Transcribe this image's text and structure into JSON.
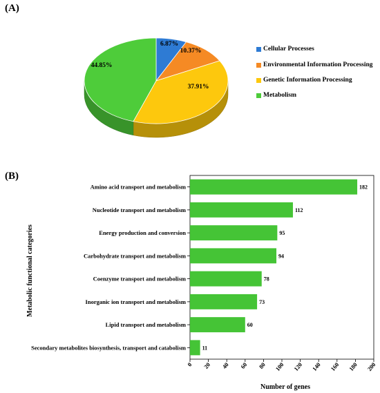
{
  "panel_a": {
    "label": "(A)"
  },
  "panel_b": {
    "label": "(B)"
  },
  "chart_data": [
    {
      "type": "pie",
      "categories": [
        "Cellular Processes",
        "Environmental Information Processing",
        "Genetic Information Processing",
        "Metabolism"
      ],
      "values": [
        6.87,
        10.37,
        37.91,
        44.85
      ],
      "data_labels": [
        "6.87%",
        "10.37%",
        "37.91%",
        "44.85%"
      ],
      "colors": [
        "#2e7bd4",
        "#f58a24",
        "#fdc80d",
        "#4ecc3a"
      ],
      "legend_position": "right",
      "style": "3d"
    },
    {
      "type": "bar",
      "orientation": "horizontal",
      "categories": [
        "Amino acid transport and metabolism",
        "Nucleotide transport and metabolism",
        "Energy production and conversion",
        "Carbohydrate transport and metabolism",
        "Coenzyme transport and metabolism",
        "Inorganic ion transport and metabolism",
        "Lipid transport and metabolism",
        "Secondary metabolites biosynthesis, transport and catabolism"
      ],
      "values": [
        182,
        112,
        95,
        94,
        78,
        73,
        60,
        11
      ],
      "xlabel": "Number of genes",
      "ylabel": "Metabolic functional categories",
      "xlim": [
        0,
        200
      ],
      "xticks": [
        0,
        20,
        40,
        60,
        80,
        100,
        120,
        140,
        160,
        180,
        200
      ],
      "bar_color": "#45c436",
      "grid": false
    }
  ]
}
